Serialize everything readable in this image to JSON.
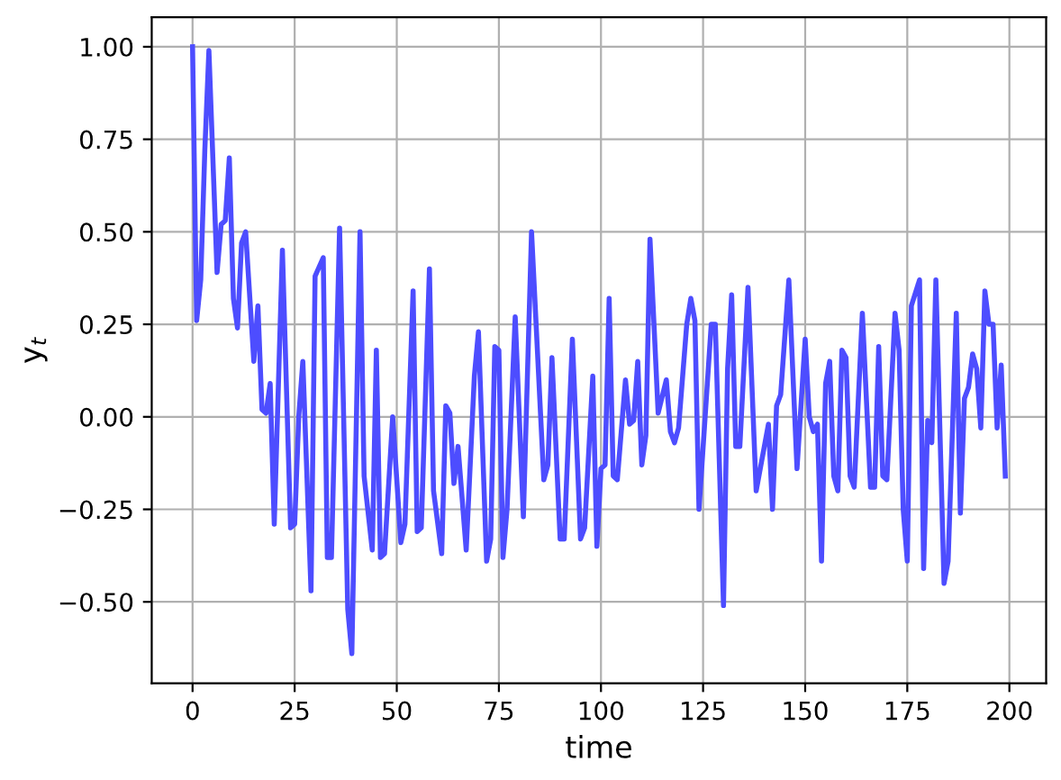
{
  "chart_data": {
    "type": "line",
    "xlabel": "time",
    "ylabel": "y$_{t}$",
    "series": [
      {
        "color": "#4d4dff",
        "x": [
          0,
          1,
          2,
          3,
          4,
          6,
          7,
          8,
          9,
          10,
          11,
          12,
          13,
          15,
          16,
          17,
          18,
          19,
          20,
          22,
          24,
          25,
          26,
          27,
          29,
          30,
          32,
          33,
          34,
          36,
          38,
          39,
          41,
          42,
          44,
          45,
          46,
          47,
          49,
          51,
          52,
          54,
          55,
          56,
          58,
          59,
          61,
          62,
          63,
          64,
          65,
          67,
          69,
          70,
          72,
          73,
          74,
          75,
          76,
          77,
          79,
          81,
          83,
          86,
          87,
          88,
          90,
          91,
          93,
          95,
          96,
          98,
          99,
          100,
          101,
          102,
          103,
          104,
          106,
          107,
          108,
          109,
          110,
          111,
          112,
          114,
          116,
          117,
          118,
          119,
          121,
          122,
          123,
          124,
          127,
          128,
          130,
          131,
          132,
          133,
          134,
          136,
          138,
          141,
          142,
          143,
          144,
          146,
          148,
          150,
          151,
          152,
          153,
          154,
          155,
          156,
          157,
          158,
          159,
          160,
          161,
          162,
          164,
          166,
          167,
          168,
          169,
          170,
          172,
          173,
          174,
          175,
          176,
          178,
          179,
          180,
          181,
          182,
          184,
          185,
          187,
          188,
          189,
          190,
          191,
          192,
          193,
          194,
          195,
          196,
          197,
          198,
          199
        ],
        "values": [
          1.0,
          0.26,
          0.37,
          0.72,
          0.99,
          0.39,
          0.52,
          0.53,
          0.7,
          0.32,
          0.24,
          0.47,
          0.5,
          0.15,
          0.3,
          0.02,
          0.01,
          0.09,
          -0.29,
          0.45,
          -0.3,
          -0.29,
          0.0,
          0.15,
          -0.47,
          0.38,
          0.43,
          -0.38,
          -0.38,
          0.51,
          -0.52,
          -0.64,
          0.5,
          -0.16,
          -0.36,
          0.18,
          -0.38,
          -0.37,
          0.0,
          -0.34,
          -0.29,
          0.34,
          -0.31,
          -0.3,
          0.4,
          -0.2,
          -0.37,
          0.03,
          0.01,
          -0.18,
          -0.08,
          -0.36,
          0.11,
          0.23,
          -0.39,
          -0.33,
          0.19,
          0.18,
          -0.38,
          -0.25,
          0.27,
          -0.27,
          0.5,
          -0.17,
          -0.13,
          0.16,
          -0.33,
          -0.33,
          0.21,
          -0.33,
          -0.3,
          0.11,
          -0.35,
          -0.14,
          -0.13,
          0.32,
          -0.16,
          -0.17,
          0.1,
          -0.02,
          -0.01,
          0.15,
          -0.13,
          -0.05,
          0.48,
          0.01,
          0.1,
          -0.04,
          -0.07,
          -0.03,
          0.25,
          0.32,
          0.26,
          -0.25,
          0.25,
          0.25,
          -0.51,
          0.13,
          0.33,
          -0.08,
          -0.08,
          0.35,
          -0.2,
          -0.02,
          -0.25,
          0.03,
          0.06,
          0.37,
          -0.14,
          0.21,
          0.0,
          -0.04,
          -0.02,
          -0.39,
          0.09,
          0.15,
          -0.16,
          -0.2,
          0.18,
          0.16,
          -0.16,
          -0.19,
          0.28,
          -0.19,
          -0.19,
          0.19,
          -0.16,
          -0.17,
          0.28,
          0.18,
          -0.25,
          -0.39,
          0.3,
          0.37,
          -0.41,
          -0.01,
          -0.07,
          0.37,
          -0.45,
          -0.39,
          0.28,
          -0.26,
          0.05,
          0.08,
          0.17,
          0.13,
          -0.03,
          0.34,
          0.25,
          0.25,
          -0.03,
          0.14,
          -0.16
        ]
      }
    ],
    "xlim": [
      -10,
      209
    ],
    "ylim": [
      -0.72,
      1.08
    ],
    "xticks": [
      0,
      25,
      50,
      75,
      100,
      125,
      150,
      175,
      200
    ],
    "yticks": [
      {
        "value": -0.5,
        "label": "−0.50"
      },
      {
        "value": -0.25,
        "label": "−0.25"
      },
      {
        "value": 0,
        "label": "0.00"
      },
      {
        "value": 0.25,
        "label": "0.25"
      },
      {
        "value": 0.5,
        "label": "0.50"
      },
      {
        "value": 0.75,
        "label": "0.75"
      },
      {
        "value": 1.0,
        "label": "1.00"
      }
    ],
    "grid": true,
    "line_style": "solid",
    "marker": "none"
  }
}
